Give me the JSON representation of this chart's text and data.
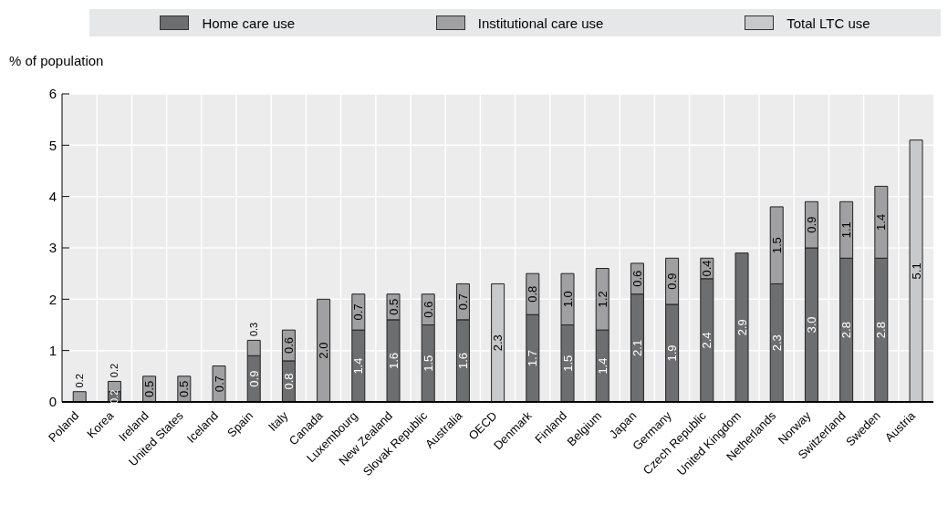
{
  "chart_data": {
    "type": "bar",
    "stacked": true,
    "ylabel": "% of population",
    "legend": "top",
    "grid": true,
    "categories": [
      "Poland",
      "Korea",
      "Ireland",
      "United States",
      "Iceland",
      "Spain",
      "Italy",
      "Canada",
      "Luxembourg",
      "New Zealand",
      "Slovak Republic",
      "Australia",
      "OECD",
      "Denmark",
      "Finland",
      "Belgium",
      "Japan",
      "Germany",
      "Czech Republic",
      "United Kingdom",
      "Netherlands",
      "Norway",
      "Switzerland",
      "Sweden",
      "Austria"
    ],
    "ylim": [
      0,
      6
    ],
    "yticks": [
      0,
      1,
      2,
      3,
      4,
      5,
      6
    ],
    "series": [
      {
        "name": "Home care use",
        "color": "#6d6e70",
        "values": [
          null,
          0.2,
          null,
          null,
          null,
          0.9,
          0.8,
          null,
          1.4,
          1.6,
          1.5,
          1.6,
          null,
          1.7,
          1.5,
          1.4,
          2.1,
          1.9,
          2.4,
          2.9,
          2.3,
          3.0,
          2.8,
          2.8,
          null
        ],
        "value_labels": [
          null,
          "0.2",
          null,
          null,
          null,
          "0.9",
          "0.8",
          null,
          "1.4",
          "1.6",
          "1.5",
          "1.6",
          null,
          "1.7",
          "1.5",
          "1.4",
          "2.1",
          "1.9",
          "2.4",
          "2.9",
          "2.3",
          "3.0",
          "2.8",
          "2.8",
          null
        ]
      },
      {
        "name": "Institutional care use",
        "color": "#a0a0a2",
        "values": [
          0.2,
          0.2,
          0.5,
          0.5,
          0.7,
          0.3,
          0.6,
          2.0,
          0.7,
          0.5,
          0.6,
          0.7,
          null,
          0.8,
          1.0,
          1.2,
          0.6,
          0.9,
          0.4,
          null,
          1.5,
          0.9,
          1.1,
          1.4,
          null
        ],
        "value_labels": [
          "0.2",
          "0.2",
          "0.5",
          "0.5",
          "0.7",
          "0.3",
          "0.6",
          "2.0",
          "0.7",
          "0.5",
          "0.6",
          "0.7",
          null,
          "0.8",
          "1.0",
          "1.2",
          "0.6",
          "0.9",
          "0.4",
          null,
          "1.5",
          "0.9",
          "1.1",
          "1.4",
          null
        ]
      },
      {
        "name": "Total LTC use",
        "color": "#c8c9cb",
        "values": [
          null,
          null,
          null,
          null,
          null,
          null,
          null,
          null,
          null,
          null,
          null,
          null,
          2.3,
          null,
          null,
          null,
          null,
          null,
          null,
          null,
          null,
          null,
          null,
          null,
          5.1
        ],
        "value_labels": [
          null,
          null,
          null,
          null,
          null,
          null,
          null,
          null,
          null,
          null,
          null,
          null,
          "2.3",
          null,
          null,
          null,
          null,
          null,
          null,
          null,
          null,
          null,
          null,
          null,
          "5.1"
        ]
      }
    ]
  }
}
